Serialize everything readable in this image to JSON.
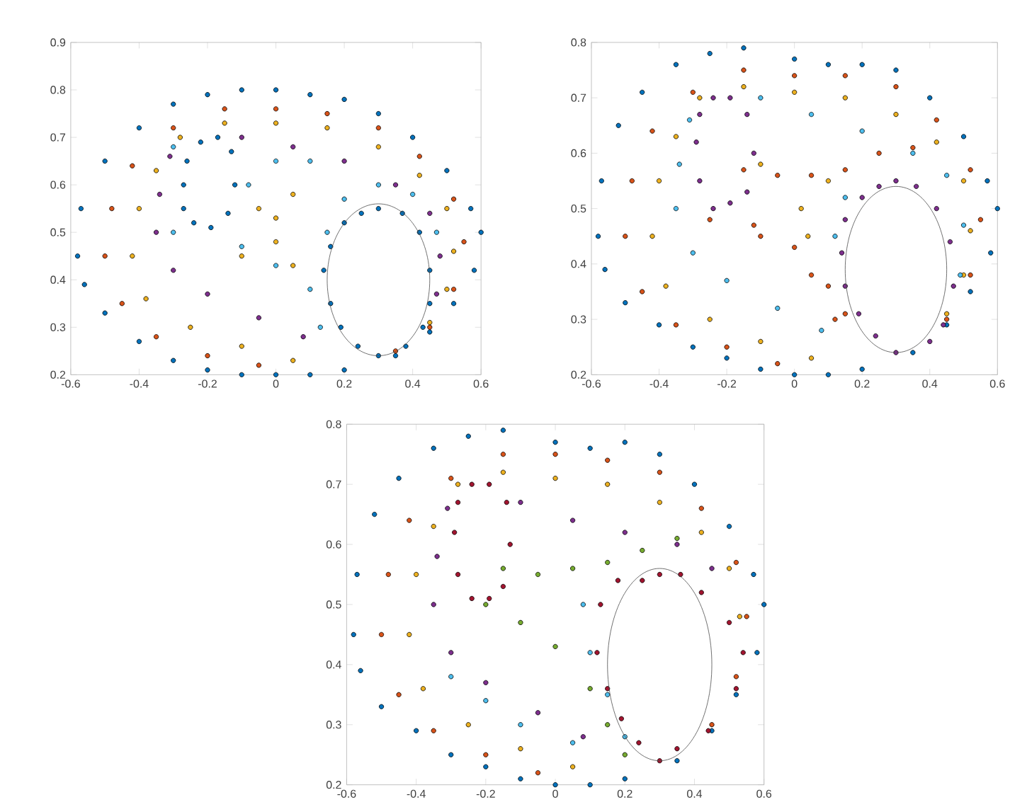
{
  "chart_data": [
    {
      "type": "scatter",
      "marker": "circle",
      "xlim": [
        -0.6,
        0.6
      ],
      "ylim": [
        0.2,
        0.9
      ],
      "xticks": [
        -0.6,
        -0.4,
        -0.2,
        0,
        0.2,
        0.4,
        0.6
      ],
      "yticks": [
        0.2,
        0.3,
        0.4,
        0.5,
        0.6,
        0.7,
        0.8,
        0.9
      ],
      "series": [
        {
          "color": "#0072bd",
          "x": [
            -0.58,
            -0.57,
            -0.5,
            -0.4,
            -0.3,
            -0.2,
            -0.1,
            0,
            0.1,
            0.2,
            0.3,
            0.4,
            0.5,
            0.57,
            0.6,
            0.58,
            0.52,
            0.45,
            0.35,
            0.2,
            0.1,
            0,
            -0.1,
            -0.2,
            -0.3,
            -0.4,
            -0.5,
            -0.56
          ],
          "values": [
            0.45,
            0.55,
            0.65,
            0.72,
            0.77,
            0.79,
            0.8,
            0.8,
            0.79,
            0.78,
            0.75,
            0.7,
            0.63,
            0.55,
            0.5,
            0.42,
            0.35,
            0.29,
            0.24,
            0.21,
            0.2,
            0.2,
            0.2,
            0.21,
            0.23,
            0.27,
            0.33,
            0.39
          ]
        },
        {
          "color": "#0072bd",
          "x": [
            -0.27,
            -0.26,
            -0.22,
            -0.17,
            -0.13,
            -0.12,
            -0.14,
            -0.19,
            -0.24,
            -0.27
          ],
          "values": [
            0.6,
            0.65,
            0.69,
            0.7,
            0.67,
            0.6,
            0.54,
            0.51,
            0.52,
            0.55
          ]
        },
        {
          "color": "#0072bd",
          "x": [
            0.14,
            0.16,
            0.2,
            0.25,
            0.3,
            0.37,
            0.42,
            0.45,
            0.45,
            0.43,
            0.38,
            0.3,
            0.24,
            0.19,
            0.16
          ],
          "values": [
            0.42,
            0.47,
            0.52,
            0.54,
            0.55,
            0.54,
            0.5,
            0.42,
            0.35,
            0.3,
            0.26,
            0.24,
            0.26,
            0.3,
            0.35
          ]
        },
        {
          "color": "#d95319",
          "x": [
            -0.5,
            -0.48,
            -0.42,
            -0.3,
            -0.15,
            0,
            0.15,
            0.3,
            0.42,
            0.52,
            0.55,
            0.52,
            0.45,
            0.35,
            -0.45,
            -0.35,
            -0.2,
            -0.05
          ],
          "values": [
            0.45,
            0.55,
            0.64,
            0.72,
            0.76,
            0.76,
            0.75,
            0.72,
            0.66,
            0.57,
            0.48,
            0.38,
            0.3,
            0.25,
            0.35,
            0.28,
            0.24,
            0.22
          ]
        },
        {
          "color": "#edb120",
          "x": [
            -0.42,
            -0.4,
            -0.35,
            -0.28,
            -0.15,
            0,
            0.15,
            0.3,
            0.42,
            0.5,
            0.52,
            0.5,
            0.45,
            -0.38,
            -0.25,
            -0.1,
            0.05
          ],
          "values": [
            0.45,
            0.55,
            0.63,
            0.7,
            0.73,
            0.73,
            0.72,
            0.68,
            0.62,
            0.55,
            0.46,
            0.38,
            0.31,
            0.36,
            0.3,
            0.26,
            0.23
          ]
        },
        {
          "color": "#7e2f8e",
          "x": [
            -0.35,
            -0.34,
            -0.31,
            -0.1,
            0.05,
            0.2,
            0.35,
            0.45,
            0.48,
            0.47,
            -0.3,
            -0.2,
            -0.05,
            0.08
          ],
          "values": [
            0.5,
            0.58,
            0.66,
            0.7,
            0.68,
            0.65,
            0.6,
            0.54,
            0.45,
            0.37,
            0.42,
            0.37,
            0.32,
            0.28
          ]
        },
        {
          "color": "#4dbeee",
          "x": [
            -0.3,
            -0.1,
            0,
            0.1,
            0.13,
            0.15,
            0.2,
            0.3,
            0.4,
            0.47,
            -0.08,
            0,
            0.1,
            -0.3
          ],
          "values": [
            0.5,
            0.47,
            0.43,
            0.38,
            0.3,
            0.5,
            0.57,
            0.6,
            0.58,
            0.5,
            0.6,
            0.65,
            0.65,
            0.68
          ]
        },
        {
          "color": "#edb120",
          "x": [
            -0.05,
            0,
            0.05,
            -0.1,
            0,
            0.05
          ],
          "values": [
            0.55,
            0.53,
            0.58,
            0.45,
            0.48,
            0.43
          ]
        }
      ]
    },
    {
      "type": "scatter",
      "marker": "circle",
      "xlim": [
        -0.6,
        0.6
      ],
      "ylim": [
        0.2,
        0.8
      ],
      "xticks": [
        -0.6,
        -0.4,
        -0.2,
        0,
        0.2,
        0.4,
        0.6
      ],
      "yticks": [
        0.2,
        0.3,
        0.4,
        0.5,
        0.6,
        0.7,
        0.8
      ],
      "series": [
        {
          "color": "#0072bd",
          "x": [
            -0.58,
            -0.57,
            -0.52,
            -0.45,
            -0.35,
            -0.25,
            -0.15,
            0,
            0.1,
            0.2,
            0.3,
            0.4,
            0.5,
            0.57,
            0.6,
            0.58,
            0.52,
            0.45,
            0.35,
            0.2,
            0.1,
            0,
            -0.1,
            -0.2,
            -0.3,
            -0.4,
            -0.5,
            -0.56
          ],
          "values": [
            0.45,
            0.55,
            0.65,
            0.71,
            0.76,
            0.78,
            0.79,
            0.77,
            0.76,
            0.76,
            0.75,
            0.7,
            0.63,
            0.55,
            0.5,
            0.42,
            0.35,
            0.29,
            0.24,
            0.21,
            0.2,
            0.2,
            0.21,
            0.23,
            0.25,
            0.29,
            0.33,
            0.39
          ]
        },
        {
          "color": "#7e2f8e",
          "x": [
            -0.29,
            -0.28,
            -0.24,
            -0.19,
            -0.14,
            -0.12,
            -0.14,
            -0.19,
            -0.24,
            -0.28
          ],
          "values": [
            0.62,
            0.67,
            0.7,
            0.7,
            0.67,
            0.6,
            0.53,
            0.51,
            0.5,
            0.55
          ]
        },
        {
          "color": "#7e2f8e",
          "x": [
            0.14,
            0.15,
            0.2,
            0.25,
            0.3,
            0.36,
            0.42,
            0.46,
            0.47,
            0.44,
            0.4,
            0.3,
            0.24,
            0.19,
            0.15
          ],
          "values": [
            0.42,
            0.48,
            0.52,
            0.54,
            0.55,
            0.54,
            0.5,
            0.44,
            0.36,
            0.29,
            0.26,
            0.24,
            0.27,
            0.31,
            0.36
          ]
        },
        {
          "color": "#d95319",
          "x": [
            -0.5,
            -0.48,
            -0.42,
            -0.3,
            -0.15,
            0,
            0.15,
            0.3,
            0.42,
            0.52,
            0.55,
            0.52,
            0.45,
            -0.45,
            -0.35,
            -0.2,
            -0.05,
            -0.12,
            0,
            0.1,
            0.15
          ],
          "values": [
            0.45,
            0.55,
            0.64,
            0.71,
            0.75,
            0.74,
            0.74,
            0.72,
            0.66,
            0.57,
            0.48,
            0.38,
            0.3,
            0.35,
            0.29,
            0.25,
            0.22,
            0.47,
            0.43,
            0.36,
            0.31
          ]
        },
        {
          "color": "#edb120",
          "x": [
            -0.42,
            -0.4,
            -0.35,
            -0.28,
            -0.15,
            0,
            0.15,
            0.3,
            0.42,
            0.5,
            0.52,
            0.5,
            0.45,
            -0.38,
            -0.25,
            -0.1,
            0.05,
            0.02,
            0.04,
            0.1,
            -0.1
          ],
          "values": [
            0.45,
            0.55,
            0.63,
            0.7,
            0.72,
            0.71,
            0.7,
            0.67,
            0.62,
            0.55,
            0.46,
            0.38,
            0.31,
            0.36,
            0.3,
            0.26,
            0.23,
            0.5,
            0.45,
            0.55,
            0.58
          ]
        },
        {
          "color": "#4dbeee",
          "x": [
            -0.35,
            -0.34,
            -0.31,
            -0.1,
            0.05,
            0.2,
            0.35,
            0.45,
            0.5,
            0.49,
            -0.3,
            -0.2,
            -0.05,
            0.08,
            0.12,
            0.15
          ],
          "values": [
            0.5,
            0.58,
            0.66,
            0.7,
            0.67,
            0.64,
            0.6,
            0.56,
            0.47,
            0.38,
            0.42,
            0.37,
            0.32,
            0.28,
            0.45,
            0.52
          ]
        },
        {
          "color": "#d95319",
          "x": [
            -0.15,
            -0.05,
            0.05,
            0.15,
            0.25,
            0.35,
            -0.25,
            -0.1,
            0.05,
            0.12
          ],
          "values": [
            0.57,
            0.56,
            0.56,
            0.57,
            0.6,
            0.61,
            0.48,
            0.45,
            0.38,
            0.3
          ]
        }
      ]
    },
    {
      "type": "scatter",
      "marker": "circle",
      "xlim": [
        -0.6,
        0.6
      ],
      "ylim": [
        0.2,
        0.8
      ],
      "xticks": [
        -0.6,
        -0.4,
        -0.2,
        0,
        0.2,
        0.4,
        0.6
      ],
      "yticks": [
        0.2,
        0.3,
        0.4,
        0.5,
        0.6,
        0.7,
        0.8
      ],
      "series": [
        {
          "color": "#0072bd",
          "x": [
            -0.58,
            -0.57,
            -0.52,
            -0.45,
            -0.35,
            -0.25,
            -0.15,
            0,
            0.1,
            0.2,
            0.3,
            0.4,
            0.5,
            0.57,
            0.6,
            0.58,
            0.52,
            0.45,
            0.35,
            0.2,
            0.1,
            0,
            -0.1,
            -0.2,
            -0.3,
            -0.4,
            -0.5,
            -0.56
          ],
          "values": [
            0.45,
            0.55,
            0.65,
            0.71,
            0.76,
            0.78,
            0.79,
            0.77,
            0.76,
            0.77,
            0.75,
            0.7,
            0.63,
            0.55,
            0.5,
            0.42,
            0.35,
            0.29,
            0.24,
            0.21,
            0.2,
            0.2,
            0.21,
            0.23,
            0.25,
            0.29,
            0.33,
            0.39
          ]
        },
        {
          "color": "#a2142f",
          "x": [
            -0.29,
            -0.28,
            -0.24,
            -0.19,
            -0.14,
            -0.13,
            -0.15,
            -0.19,
            -0.24,
            -0.28
          ],
          "values": [
            0.62,
            0.67,
            0.7,
            0.7,
            0.67,
            0.6,
            0.53,
            0.51,
            0.51,
            0.55
          ]
        },
        {
          "color": "#a2142f",
          "x": [
            0.12,
            0.13,
            0.18,
            0.25,
            0.3,
            0.36,
            0.42,
            0.5,
            0.54,
            0.52,
            0.44,
            0.35,
            0.3,
            0.24,
            0.19,
            0.15
          ],
          "values": [
            0.42,
            0.5,
            0.54,
            0.54,
            0.55,
            0.55,
            0.52,
            0.47,
            0.42,
            0.36,
            0.29,
            0.26,
            0.24,
            0.27,
            0.31,
            0.36
          ]
        },
        {
          "color": "#d95319",
          "x": [
            -0.5,
            -0.48,
            -0.42,
            -0.3,
            -0.15,
            0,
            0.15,
            0.3,
            0.42,
            0.52,
            0.55,
            0.52,
            0.45,
            -0.45,
            -0.35,
            -0.2,
            -0.05
          ],
          "values": [
            0.45,
            0.55,
            0.64,
            0.71,
            0.75,
            0.75,
            0.74,
            0.72,
            0.66,
            0.57,
            0.48,
            0.38,
            0.3,
            0.35,
            0.29,
            0.25,
            0.22
          ]
        },
        {
          "color": "#edb120",
          "x": [
            -0.42,
            -0.4,
            -0.35,
            -0.28,
            -0.15,
            0,
            0.15,
            0.3,
            0.42,
            0.5,
            0.53,
            -0.38,
            -0.25,
            -0.1,
            0.05
          ],
          "values": [
            0.45,
            0.55,
            0.63,
            0.7,
            0.72,
            0.71,
            0.7,
            0.67,
            0.62,
            0.56,
            0.48,
            0.36,
            0.3,
            0.26,
            0.23
          ]
        },
        {
          "color": "#7e2f8e",
          "x": [
            -0.35,
            -0.34,
            -0.31,
            -0.1,
            0.05,
            0.2,
            0.35,
            0.45,
            -0.3,
            -0.2,
            -0.05,
            0.08
          ],
          "values": [
            0.5,
            0.58,
            0.66,
            0.67,
            0.64,
            0.62,
            0.6,
            0.56,
            0.42,
            0.37,
            0.32,
            0.28
          ]
        },
        {
          "color": "#77ac30",
          "x": [
            -0.15,
            -0.05,
            0.05,
            0.15,
            0.25,
            0.35,
            -0.2,
            -0.1,
            0,
            0.1,
            0.15,
            0.2
          ],
          "values": [
            0.56,
            0.55,
            0.56,
            0.57,
            0.59,
            0.61,
            0.5,
            0.47,
            0.43,
            0.36,
            0.3,
            0.25
          ]
        },
        {
          "color": "#4dbeee",
          "x": [
            0.08,
            0.1,
            0.15,
            0.2,
            -0.3,
            -0.2,
            -0.1,
            0.05
          ],
          "values": [
            0.5,
            0.42,
            0.35,
            0.28,
            0.38,
            0.34,
            0.3,
            0.27
          ]
        }
      ]
    }
  ]
}
